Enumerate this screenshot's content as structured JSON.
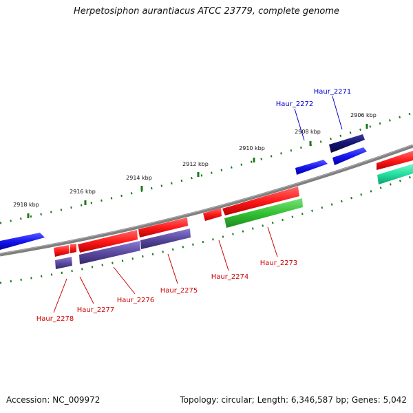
{
  "title": "Herpetosiphon aurantiacus ATCC 23779, complete genome",
  "footer": {
    "accession": "Accession: NC_009972",
    "summary": "Topology: circular; Length: 6,346,587 bp; Genes: 5,042"
  },
  "colors": {
    "backbone": "#808080",
    "scale_dots": "#1a7a1a",
    "label_red": "#cc0000",
    "label_blue": "#0000cc",
    "gene_red": "#ff2020",
    "gene_blue": "#1515f0",
    "gene_navy": "#14146e",
    "gene_purple": "#5a4aa0",
    "gene_green": "#33c233",
    "gene_teal": "#22e0a0"
  },
  "scale_labels": [
    "2906 kbp",
    "2908 kbp",
    "2910 kbp",
    "2912 kbp",
    "2914 kbp",
    "2916 kbp",
    "2918 kbp"
  ],
  "gene_labels": [
    "Haur_2271",
    "Haur_2272",
    "Haur_2273",
    "Haur_2274",
    "Haur_2275",
    "Haur_2276",
    "Haur_2277",
    "Haur_2278"
  ]
}
